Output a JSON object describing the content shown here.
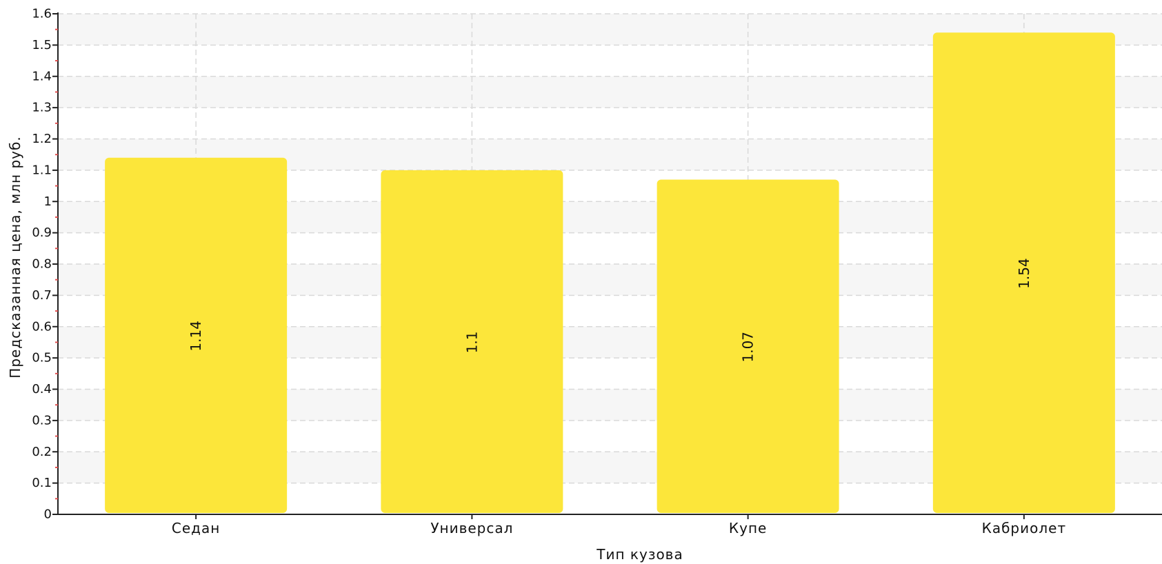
{
  "chart_data": {
    "type": "bar",
    "categories": [
      "Седан",
      "Универсал",
      "Купе",
      "Кабриолет"
    ],
    "values": [
      1.14,
      1.1,
      1.07,
      1.54
    ],
    "data_labels": [
      "1.14",
      "1.1",
      "1.07",
      "1.54"
    ],
    "xlabel": "Тип кузова",
    "ylabel": "Предсказанная цена, млн руб.",
    "ylim": [
      0,
      1.6
    ],
    "yticks": [
      0,
      0.1,
      0.2,
      0.3,
      0.4,
      0.5,
      0.6,
      0.7,
      0.8,
      0.9,
      1,
      1.1,
      1.2,
      1.3,
      1.4,
      1.5,
      1.6
    ],
    "ytick_labels": [
      "0",
      "0.1",
      "0.2",
      "0.3",
      "0.4",
      "0.5",
      "0.6",
      "0.7",
      "0.8",
      "0.9",
      "1",
      "1.1",
      "1.2",
      "1.3",
      "1.4",
      "1.5",
      "1.6"
    ],
    "grid": true,
    "bar_color": "#fce63a",
    "band_color": "#f6f6f6",
    "grid_color": "#d9d9d9",
    "minor_tick_color": "#e05050"
  }
}
